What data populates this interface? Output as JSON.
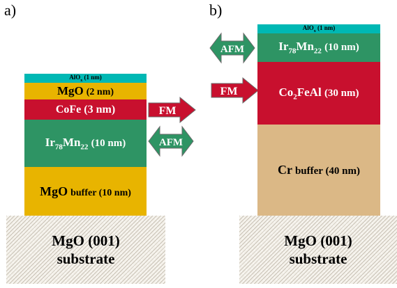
{
  "panel_a": {
    "label": "a)",
    "layers": {
      "alox": "AlOx (1 nm)",
      "mgo": "MgO (2 nm)",
      "cofe": "CoFe (3 nm)",
      "irmn": "Ir78Mn22 (10 nm)",
      "mgo_buffer": "MgO buffer (10 nm)"
    },
    "substrate": {
      "line1": "MgO (001)",
      "line2": "substrate"
    },
    "arrows": {
      "fm": "FM",
      "afm": "AFM"
    }
  },
  "panel_b": {
    "label": "b)",
    "layers": {
      "alox": "AlOx (1 nm)",
      "irmn": "Ir78Mn22 (10 nm)",
      "co2feal": "Co2FeAl (30 nm)",
      "cr_buffer": "Cr buffer (40 nm)"
    },
    "substrate": {
      "line1": "MgO (001)",
      "line2": "substrate"
    },
    "arrows": {
      "afm": "AFM",
      "fm": "FM"
    }
  },
  "colors": {
    "alox": "#00b8b4",
    "mgo": "#e8b400",
    "ferromagnet": "#c8102e",
    "irmn": "#2e9464",
    "cr": "#dbb886",
    "substrate": "#f4f1ea"
  }
}
